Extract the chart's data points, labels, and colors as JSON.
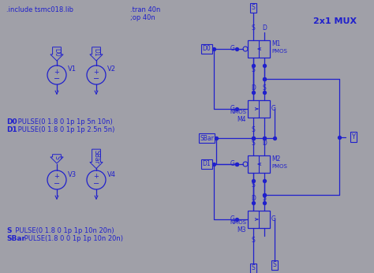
{
  "bg_color": "#a0a0a8",
  "blue": "#2020cc",
  "title": "2x1 MUX",
  "include_text": ".include tsmc018.lib",
  "tran_text": ".tran 40n",
  "op_text": ";op 40n"
}
